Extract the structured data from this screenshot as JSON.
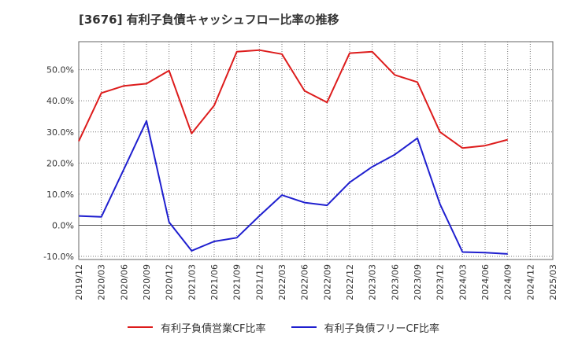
{
  "title": "[3676]  有利子負債キャッシュフロー比率の推移",
  "chart_data": {
    "type": "line",
    "x": [
      "2019/12",
      "2020/03",
      "2020/06",
      "2020/09",
      "2020/12",
      "2021/03",
      "2021/06",
      "2021/09",
      "2021/12",
      "2022/03",
      "2022/06",
      "2022/09",
      "2022/12",
      "2023/03",
      "2023/06",
      "2023/09",
      "2023/12",
      "2024/03",
      "2024/06",
      "2024/09",
      "2024/12",
      "2025/03"
    ],
    "series": [
      {
        "name": "有利子負債営業CF比率",
        "color": "#dd1c1c",
        "values": [
          27.0,
          42.5,
          44.8,
          45.5,
          49.7,
          29.5,
          38.5,
          55.8,
          56.3,
          55.0,
          43.2,
          39.5,
          55.3,
          55.8,
          48.3,
          46.0,
          30.0,
          24.8,
          25.6,
          27.5,
          null,
          null
        ]
      },
      {
        "name": "有利子負債フリーCF比率",
        "color": "#1f1fcf",
        "values": [
          3.0,
          2.7,
          18.0,
          33.5,
          1.0,
          -8.2,
          -5.2,
          -4.0,
          3.0,
          9.7,
          7.3,
          6.4,
          13.8,
          18.8,
          22.7,
          28.0,
          6.8,
          -8.6,
          -8.8,
          -9.2,
          null,
          null
        ]
      }
    ],
    "yticks": [
      "-10.0%",
      "0.0%",
      "10.0%",
      "20.0%",
      "30.0%",
      "40.0%",
      "50.0%"
    ],
    "ylim": [
      -11,
      59
    ],
    "grid": true,
    "legend_position": "bottom"
  }
}
